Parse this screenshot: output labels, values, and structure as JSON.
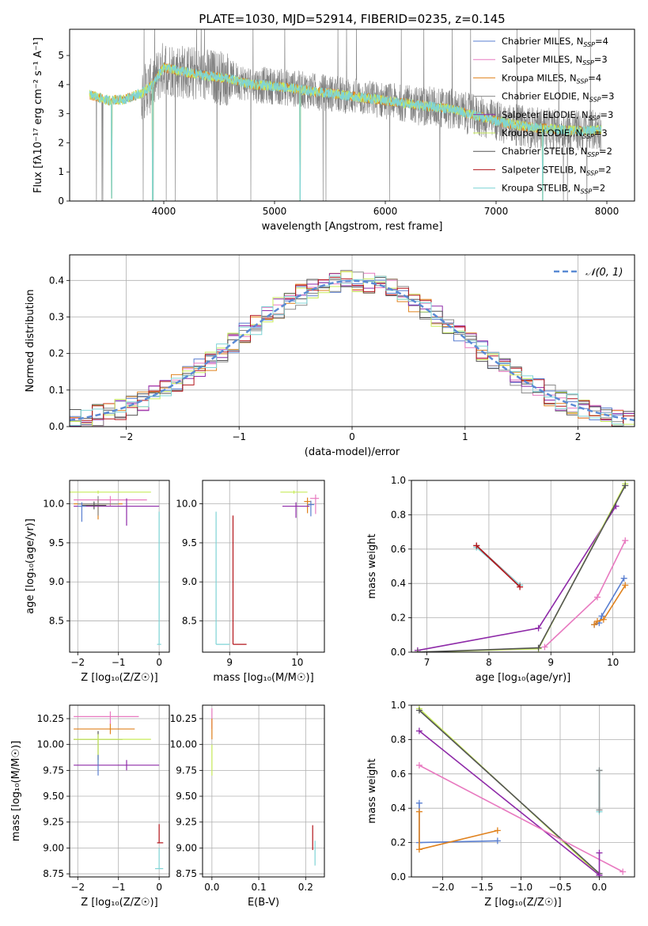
{
  "figure_title": "PLATE=1030, MJD=52914, FIBERID=0235, z=0.145",
  "colors": {
    "chabrier_miles": "#5a7fd0",
    "salpeter_miles": "#e87ac0",
    "kroupa_miles": "#e0821e",
    "chabrier_elodie": "#8a8a8a",
    "salpeter_elodie": "#8e2aa8",
    "kroupa_elodie": "#c8ec5a",
    "chabrier_stelib": "#555555",
    "salpeter_stelib": "#b3141a",
    "kroupa_stelib": "#7fd4d6",
    "data": "#808080",
    "normal": "#5a8ad4",
    "grid": "#b0b0b0"
  },
  "chart_data": [
    {
      "id": "spectrum",
      "type": "line",
      "title": "PLATE=1030, MJD=52914, FIBERID=0235, z=0.145",
      "xlabel": "wavelength [Angstrom, rest frame]",
      "ylabel": "Flux [fλ10⁻¹⁷ erg cm⁻² s⁻¹ A⁻¹]",
      "xlim": [
        3150,
        8250
      ],
      "ylim": [
        0,
        5.9
      ],
      "xticks": [
        "4000",
        "5000",
        "6000",
        "7000",
        "8000"
      ],
      "yticks": [
        "0",
        "1",
        "2",
        "3",
        "4",
        "5"
      ],
      "grid": false,
      "legend_position": "upper right",
      "legend": [
        {
          "key": "chabrier_miles",
          "label": "Chabrier MILES, N",
          "sub": "SSP",
          "suffix": "=4"
        },
        {
          "key": "salpeter_miles",
          "label": "Salpeter MILES, N",
          "sub": "SSP",
          "suffix": "=3"
        },
        {
          "key": "kroupa_miles",
          "label": "Kroupa MILES, N",
          "sub": "SSP",
          "suffix": "=4"
        },
        {
          "key": "chabrier_elodie",
          "label": "Chabrier ELODIE, N",
          "sub": "SSP",
          "suffix": "=3"
        },
        {
          "key": "salpeter_elodie",
          "label": "Salpeter ELODIE, N",
          "sub": "SSP",
          "suffix": "=3"
        },
        {
          "key": "kroupa_elodie",
          "label": "Kroupa ELODIE, N",
          "sub": "SSP",
          "suffix": "=3"
        },
        {
          "key": "chabrier_stelib",
          "label": "Chabrier STELIB, N",
          "sub": "SSP",
          "suffix": "=2"
        },
        {
          "key": "salpeter_stelib",
          "label": "Salpeter STELIB, N",
          "sub": "SSP",
          "suffix": "=2"
        },
        {
          "key": "kroupa_stelib",
          "label": "Kroupa STELIB, N",
          "sub": "SSP",
          "suffix": "=2"
        }
      ],
      "continuum": [
        [
          3330,
          3.65
        ],
        [
          3500,
          3.45
        ],
        [
          3650,
          3.5
        ],
        [
          3800,
          3.7
        ],
        [
          3900,
          4.0
        ],
        [
          4000,
          4.6
        ],
        [
          4100,
          4.5
        ],
        [
          4300,
          4.35
        ],
        [
          4600,
          4.2
        ],
        [
          4800,
          4.0
        ],
        [
          5000,
          3.95
        ],
        [
          5200,
          3.85
        ],
        [
          5400,
          3.75
        ],
        [
          5600,
          3.65
        ],
        [
          5800,
          3.55
        ],
        [
          6000,
          3.45
        ],
        [
          6200,
          3.35
        ],
        [
          6400,
          3.25
        ],
        [
          6600,
          3.15
        ],
        [
          6800,
          2.95
        ],
        [
          7000,
          2.75
        ],
        [
          7200,
          2.6
        ],
        [
          7400,
          2.5
        ],
        [
          7600,
          2.45
        ],
        [
          7800,
          2.4
        ],
        [
          7950,
          2.45
        ]
      ],
      "model_dips": [
        [
          3530,
          0.1
        ],
        [
          3900,
          0.0
        ],
        [
          5230,
          0.0
        ],
        [
          7420,
          0.0
        ]
      ],
      "data_range": [
        3330,
        7950
      ],
      "data_noise_amplitude": 0.8
    },
    {
      "id": "residuals",
      "type": "histogram",
      "xlabel": "(data-model)/error",
      "ylabel": "Normed distribution",
      "xlim": [
        -2.5,
        2.5
      ],
      "ylim": [
        0,
        0.47
      ],
      "xticks": [
        "−2",
        "−1",
        "0",
        "1",
        "2"
      ],
      "yticks": [
        "0.0",
        "0.1",
        "0.2",
        "0.3",
        "0.4"
      ],
      "grid": true,
      "legend_position": "upper right",
      "normal_label": "𝒩(0, 1)",
      "bin_width": 0.1
    },
    {
      "id": "age_vs_z",
      "type": "scatter",
      "xlabel": "Z [log₁₀(Z/Z☉)]",
      "ylabel": "age  [log₁₀(age/yr)]",
      "xlim": [
        -2.2,
        0.25
      ],
      "ylim": [
        8.1,
        10.3
      ],
      "xticks": [
        "−2",
        "−1",
        "0"
      ],
      "yticks": [
        "8.5",
        "9.0",
        "9.5",
        "10.0"
      ],
      "grid": true,
      "points": [
        {
          "key": "kroupa_elodie",
          "x": -1.5,
          "y": 10.15,
          "xerr": [
            0.9,
            1.3
          ],
          "yerr": [
            0.02,
            0.02
          ]
        },
        {
          "key": "salpeter_miles",
          "x": -1.2,
          "y": 10.05,
          "xerr": [
            0.9,
            0.9
          ],
          "yerr": [
            0.08,
            0.05
          ]
        },
        {
          "key": "kroupa_miles",
          "x": -1.5,
          "y": 10.0,
          "xerr": [
            0.6,
            0.6
          ],
          "yerr": [
            0.2,
            0.05
          ]
        },
        {
          "key": "chabrier_elodie",
          "x": -1.5,
          "y": 10.0,
          "xerr": [
            0.5,
            0.5
          ],
          "yerr": [
            0.15,
            0.1
          ]
        },
        {
          "key": "salpeter_elodie",
          "x": -0.8,
          "y": 9.97,
          "xerr": [
            1.3,
            0.8
          ],
          "yerr": [
            0.25,
            0.1
          ]
        },
        {
          "key": "chabrier_stelib",
          "x": -1.6,
          "y": 9.98,
          "xerr": [
            0.3,
            0.3
          ],
          "yerr": [
            0.05,
            0.05
          ]
        },
        {
          "key": "kroupa_stelib",
          "x": 0.0,
          "y": 8.2,
          "xerr": [
            0.05,
            0.05
          ],
          "yerr": [
            0.0,
            1.7
          ]
        },
        {
          "key": "chabrier_miles",
          "x": -1.9,
          "y": 9.97,
          "xerr": [
            0.1,
            0.1
          ],
          "yerr": [
            0.2,
            0.05
          ]
        }
      ]
    },
    {
      "id": "age_vs_mass",
      "type": "scatter",
      "xlabel": "mass [log₁₀(M/M☉)]",
      "ylabel": "",
      "xlim": [
        8.6,
        10.4
      ],
      "ylim": [
        8.1,
        10.3
      ],
      "xticks": [
        "9",
        "10"
      ],
      "yticks": [
        "8.5",
        "9.0",
        "9.5",
        "10.0"
      ],
      "grid": true,
      "points": [
        {
          "key": "kroupa_stelib",
          "x": 8.8,
          "y": 8.2,
          "xerr": [
            0.0,
            0.2
          ],
          "yerr": [
            0.0,
            1.7
          ]
        },
        {
          "key": "salpeter_stelib",
          "x": 9.05,
          "y": 8.2,
          "xerr": [
            0.0,
            0.2
          ],
          "yerr": [
            0.0,
            1.65
          ]
        },
        {
          "key": "kroupa_elodie",
          "x": 9.95,
          "y": 10.15,
          "xerr": [
            0.2,
            0.2
          ],
          "yerr": [
            0.02,
            0.02
          ]
        },
        {
          "key": "salpeter_miles",
          "x": 10.27,
          "y": 10.07,
          "xerr": [
            0.08,
            0.05
          ],
          "yerr": [
            0.2,
            0.05
          ]
        },
        {
          "key": "kroupa_miles",
          "x": 10.15,
          "y": 10.03,
          "xerr": [
            0.05,
            0.05
          ],
          "yerr": [
            0.15,
            0.05
          ]
        },
        {
          "key": "salpeter_elodie",
          "x": 9.98,
          "y": 9.97,
          "xerr": [
            0.2,
            0.2
          ],
          "yerr": [
            0.15,
            0.05
          ]
        },
        {
          "key": "chabrier_miles",
          "x": 10.2,
          "y": 9.99,
          "xerr": [
            0.05,
            0.05
          ],
          "yerr": [
            0.15,
            0.05
          ]
        }
      ]
    },
    {
      "id": "mass_weight_vs_age",
      "type": "line",
      "xlabel": "age  [log₁₀(age/yr)]",
      "ylabel": "mass weight",
      "xlim": [
        6.75,
        10.35
      ],
      "ylim": [
        0,
        1
      ],
      "xticks": [
        "7",
        "8",
        "9",
        "10"
      ],
      "yticks": [
        "0.0",
        "0.2",
        "0.4",
        "0.6",
        "0.8",
        "1.0"
      ],
      "grid": true,
      "series": [
        {
          "key": "chabrier_elodie",
          "x": [
            7.8,
            8.5
          ],
          "y": [
            0.62,
            0.39
          ]
        },
        {
          "key": "kroupa_stelib",
          "x": [
            7.8,
            8.5
          ],
          "y": [
            0.61,
            0.39
          ]
        },
        {
          "key": "salpeter_stelib",
          "x": [
            7.8,
            8.5
          ],
          "y": [
            0.62,
            0.38
          ]
        },
        {
          "key": "salpeter_elodie",
          "x": [
            6.85,
            8.8,
            10.05
          ],
          "y": [
            0.01,
            0.14,
            0.85
          ]
        },
        {
          "key": "kroupa_elodie",
          "x": [
            6.85,
            8.8,
            10.2
          ],
          "y": [
            0.0,
            0.02,
            0.98
          ]
        },
        {
          "key": "chabrier_stelib",
          "x": [
            6.85,
            8.8,
            10.2
          ],
          "y": [
            0.0,
            0.025,
            0.97
          ]
        },
        {
          "key": "salpeter_miles",
          "x": [
            8.9,
            9.75,
            10.2
          ],
          "y": [
            0.03,
            0.32,
            0.65
          ]
        },
        {
          "key": "chabrier_miles",
          "x": [
            9.7,
            9.78,
            9.82,
            10.18
          ],
          "y": [
            0.16,
            0.17,
            0.21,
            0.43
          ]
        },
        {
          "key": "kroupa_miles",
          "x": [
            9.7,
            9.75,
            9.85,
            10.2
          ],
          "y": [
            0.16,
            0.18,
            0.19,
            0.39
          ]
        }
      ]
    },
    {
      "id": "mass_vs_z",
      "type": "scatter",
      "xlabel": "Z [log₁₀(Z/Z☉)]",
      "ylabel": "mass [log₁₀(M/M☉)]",
      "xlim": [
        -2.2,
        0.25
      ],
      "ylim": [
        8.72,
        10.38
      ],
      "xticks": [
        "−2",
        "−1",
        "0"
      ],
      "yticks": [
        "8.75",
        "9.00",
        "9.25",
        "9.50",
        "9.75",
        "10.00",
        "10.25"
      ],
      "grid": true,
      "points": [
        {
          "key": "salpeter_miles",
          "x": -1.2,
          "y": 10.27,
          "xerr": [
            0.9,
            0.7
          ],
          "yerr": [
            0.08,
            0.05
          ]
        },
        {
          "key": "kroupa_miles",
          "x": -1.2,
          "y": 10.15,
          "xerr": [
            0.9,
            0.6
          ],
          "yerr": [
            0.05,
            0.05
          ]
        },
        {
          "key": "chabrier_stelib",
          "x": -1.5,
          "y": 10.05,
          "xerr": [
            0.6,
            0.6
          ],
          "yerr": [
            0.2,
            0.08
          ]
        },
        {
          "key": "kroupa_elodie",
          "x": -1.5,
          "y": 10.05,
          "xerr": [
            0.6,
            1.3
          ],
          "yerr": [
            0.25,
            0.05
          ]
        },
        {
          "key": "salpeter_elodie",
          "x": -0.8,
          "y": 9.8,
          "xerr": [
            1.3,
            0.8
          ],
          "yerr": [
            0.05,
            0.05
          ]
        },
        {
          "key": "chabrier_miles",
          "x": -1.5,
          "y": 9.8,
          "xerr": [
            0.0,
            0.0
          ],
          "yerr": [
            0.1,
            0.1
          ]
        },
        {
          "key": "salpeter_stelib",
          "x": 0.0,
          "y": 9.05,
          "xerr": [
            0.05,
            0.1
          ],
          "yerr": [
            0.0,
            0.18
          ]
        },
        {
          "key": "kroupa_stelib",
          "x": 0.0,
          "y": 8.8,
          "xerr": [
            0.1,
            0.1
          ],
          "yerr": [
            0.0,
            0.2
          ]
        }
      ]
    },
    {
      "id": "mass_vs_ebv",
      "type": "scatter",
      "xlabel": "E(B-V)",
      "ylabel": "",
      "xlim": [
        -0.02,
        0.24
      ],
      "ylim": [
        8.72,
        10.38
      ],
      "xticks": [
        "0.0",
        "0.1",
        "0.2"
      ],
      "yticks": [
        "8.75",
        "9.00",
        "9.25",
        "9.50",
        "9.75",
        "10.00",
        "10.25"
      ],
      "grid": true,
      "points": [
        {
          "key": "salpeter_miles",
          "x": 0.0,
          "y": 10.25,
          "xerr": [
            0,
            0
          ],
          "yerr": [
            0.1,
            0.1
          ]
        },
        {
          "key": "kroupa_miles",
          "x": 0.0,
          "y": 10.15,
          "xerr": [
            0,
            0
          ],
          "yerr": [
            0.1,
            0.1
          ]
        },
        {
          "key": "kroupa_elodie",
          "x": 0.0,
          "y": 9.85,
          "xerr": [
            0,
            0
          ],
          "yerr": [
            0.15,
            0.15
          ]
        },
        {
          "key": "salpeter_stelib",
          "x": 0.215,
          "y": 9.1,
          "xerr": [
            0,
            0
          ],
          "yerr": [
            0.12,
            0.12
          ]
        },
        {
          "key": "kroupa_stelib",
          "x": 0.22,
          "y": 8.95,
          "xerr": [
            0,
            0
          ],
          "yerr": [
            0.12,
            0.12
          ]
        }
      ]
    },
    {
      "id": "mass_weight_vs_z",
      "type": "line",
      "xlabel": "Z [log₁₀(Z/Z☉)]",
      "ylabel": "mass weight",
      "xlim": [
        -2.4,
        0.45
      ],
      "ylim": [
        0,
        1
      ],
      "xticks": [
        "−2.0",
        "−1.5",
        "−1.0",
        "−0.5",
        "0.0"
      ],
      "yticks": [
        "0.0",
        "0.2",
        "0.4",
        "0.6",
        "0.8",
        "1.0"
      ],
      "grid": true,
      "series": [
        {
          "key": "kroupa_elodie",
          "x": [
            -2.3,
            0.0
          ],
          "y": [
            0.98,
            0.01
          ]
        },
        {
          "key": "chabrier_stelib",
          "x": [
            -2.3,
            0.0
          ],
          "y": [
            0.97,
            0.02
          ]
        },
        {
          "key": "salpeter_elodie",
          "x": [
            -2.3,
            0.0
          ],
          "y": [
            0.85,
            0.01
          ]
        },
        {
          "key": "salpeter_miles",
          "x": [
            -2.3,
            0.3
          ],
          "y": [
            0.65,
            0.03
          ]
        },
        {
          "key": "chabrier_miles",
          "x": [
            -2.3,
            -2.3,
            -1.3
          ],
          "y": [
            0.43,
            0.2,
            0.21
          ]
        },
        {
          "key": "kroupa_miles",
          "x": [
            -2.3,
            -2.3,
            -1.3
          ],
          "y": [
            0.38,
            0.16,
            0.27
          ]
        },
        {
          "key": "kroupa_stelib",
          "x": [
            0.0,
            0.0
          ],
          "y": [
            0.62,
            0.38
          ]
        },
        {
          "key": "chabrier_elodie",
          "x": [
            0.0,
            0.0
          ],
          "y": [
            0.62,
            0.39
          ]
        },
        {
          "key": "salpeter_elodie",
          "x": [
            0.0,
            0.0
          ],
          "y": [
            0.14,
            0.01
          ]
        }
      ]
    }
  ]
}
